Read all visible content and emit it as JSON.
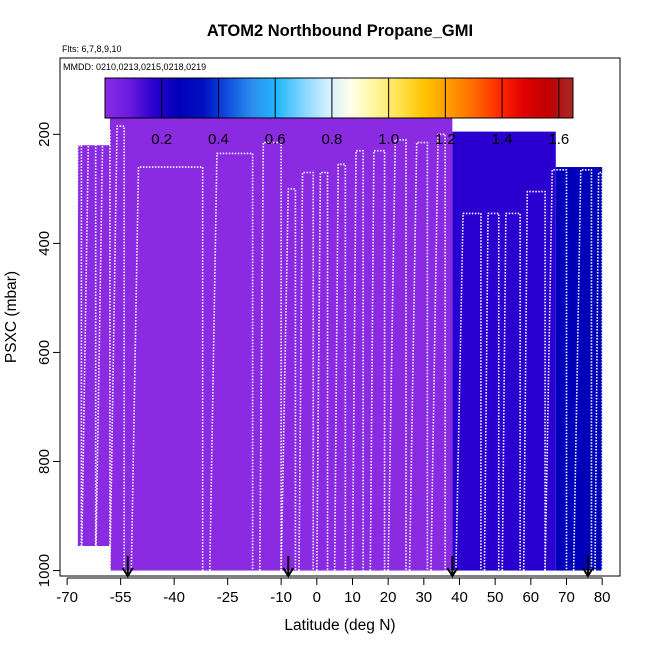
{
  "chart_data": {
    "type": "heatmap",
    "title": "ATOM2 Northbound Propane_GMI",
    "flights_note": "Flts: 6,7,8,9,10",
    "dates_note": "MMDD: 0210,0213,0215,0218,0219",
    "xlabel": "Latitude (deg N)",
    "ylabel": "PSXC (mbar)",
    "xlim": [
      -72,
      85
    ],
    "ylim": [
      1010,
      60
    ],
    "x_ticks": [
      -70,
      -55,
      -40,
      -25,
      -10,
      0,
      10,
      20,
      30,
      40,
      50,
      60,
      70,
      80
    ],
    "x_tick_labels": [
      "-70",
      "-55",
      "-40",
      "-25",
      "-10",
      "0",
      "10",
      "20",
      "30",
      "40",
      "50",
      "60",
      "70",
      "80"
    ],
    "y_ticks": [
      200,
      400,
      600,
      800,
      1000
    ],
    "y_tick_labels": [
      "200",
      "400",
      "600",
      "800",
      "1000"
    ],
    "colorbar": {
      "range": [
        0,
        1.65
      ],
      "ticks": [
        0.2,
        0.4,
        0.6,
        0.8,
        1.0,
        1.2,
        1.4,
        1.6
      ],
      "tick_labels": [
        "0.2",
        "0.4",
        "0.6",
        "0.8",
        "1.0",
        "1.2",
        "1.4",
        "1.6"
      ],
      "colors": [
        "#8a2be2",
        "#6a1be0",
        "#2a00d0",
        "#0000b8",
        "#0010c0",
        "#1050e0",
        "#2e8ef0",
        "#20b8ff",
        "#80d4ff",
        "#d0eeff",
        "#ffffe8",
        "#fff59a",
        "#ffe14a",
        "#ffc200",
        "#ff9900",
        "#ff6a00",
        "#ff2a00",
        "#e00000",
        "#c00000",
        "#a52a2a"
      ]
    },
    "curtain_blocks": [
      {
        "lat": [
          -67,
          -58
        ],
        "p": [
          220,
          955
        ],
        "value": 0.02
      },
      {
        "lat": [
          -58,
          38
        ],
        "p": [
          165,
          1000
        ],
        "value": 0.02
      },
      {
        "lat": [
          38,
          67
        ],
        "p": [
          195,
          1000
        ],
        "value": 0.2
      },
      {
        "lat": [
          67,
          80
        ],
        "p": [
          260,
          1000
        ],
        "value": 0.3
      }
    ],
    "vertical_profiles": [
      {
        "lat": [
          -68,
          -67,
          -66
        ],
        "p_top": 220
      },
      {
        "lat": [
          -66,
          -64,
          -62
        ],
        "p_top": 195
      },
      {
        "lat": [
          -62,
          -60,
          -58
        ],
        "p_top": 190
      },
      {
        "lat": [
          -58,
          -56,
          -54
        ],
        "p_top": 185
      },
      {
        "lat": [
          -52,
          -50,
          -32
        ],
        "p_top": 260
      },
      {
        "lat": [
          -30,
          -28,
          -18
        ],
        "p_top": 235
      },
      {
        "lat": [
          -16,
          -15,
          -10
        ],
        "p_top": 215
      },
      {
        "lat": [
          -10,
          -8,
          -6
        ],
        "p_top": 300
      },
      {
        "lat": [
          -5,
          -4,
          -1
        ],
        "p_top": 270
      },
      {
        "lat": [
          0,
          1,
          3
        ],
        "p_top": 270
      },
      {
        "lat": [
          5,
          6,
          8
        ],
        "p_top": 255
      },
      {
        "lat": [
          10,
          11,
          13
        ],
        "p_top": 230
      },
      {
        "lat": [
          15,
          16,
          19
        ],
        "p_top": 230
      },
      {
        "lat": [
          20,
          22,
          25
        ],
        "p_top": 210
      },
      {
        "lat": [
          26,
          28,
          31
        ],
        "p_top": 215
      },
      {
        "lat": [
          32,
          34,
          36
        ],
        "p_top": 200
      },
      {
        "lat": [
          39,
          41,
          46
        ],
        "p_top": 345
      },
      {
        "lat": [
          47,
          48,
          51
        ],
        "p_top": 345
      },
      {
        "lat": [
          52,
          53,
          57
        ],
        "p_top": 345
      },
      {
        "lat": [
          58,
          59,
          64
        ],
        "p_top": 305
      },
      {
        "lat": [
          64,
          66,
          70
        ],
        "p_top": 265
      },
      {
        "lat": [
          72,
          74,
          77
        ],
        "p_top": 265
      },
      {
        "lat": [
          78,
          79,
          80
        ],
        "p_top": 270
      }
    ],
    "arrow_latitudes": [
      -53,
      -8,
      38,
      76
    ]
  }
}
